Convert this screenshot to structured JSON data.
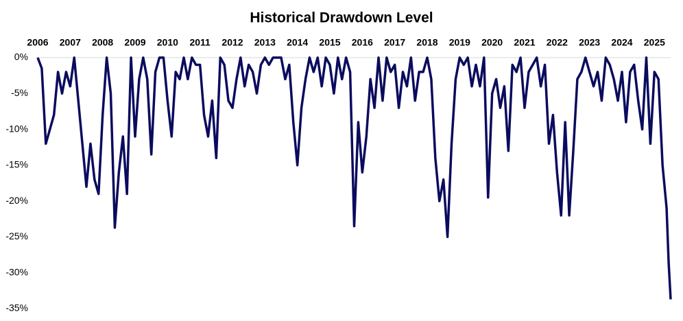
{
  "chart_data": {
    "type": "line",
    "title": "Historical Drawdown Level",
    "x": [
      2006,
      2006.125,
      2006.25,
      2006.375,
      2006.5,
      2006.625,
      2006.75,
      2006.875,
      2007,
      2007.125,
      2007.25,
      2007.375,
      2007.5,
      2007.625,
      2007.75,
      2007.875,
      2008,
      2008.125,
      2008.25,
      2008.375,
      2008.5,
      2008.625,
      2008.75,
      2008.875,
      2009,
      2009.125,
      2009.25,
      2009.375,
      2009.5,
      2009.625,
      2009.75,
      2009.875,
      2010,
      2010.125,
      2010.25,
      2010.375,
      2010.5,
      2010.625,
      2010.75,
      2010.875,
      2011,
      2011.125,
      2011.25,
      2011.375,
      2011.5,
      2011.625,
      2011.75,
      2011.875,
      2012,
      2012.125,
      2012.25,
      2012.375,
      2012.5,
      2012.625,
      2012.75,
      2012.875,
      2013,
      2013.125,
      2013.25,
      2013.375,
      2013.5,
      2013.625,
      2013.75,
      2013.875,
      2014,
      2014.125,
      2014.25,
      2014.375,
      2014.5,
      2014.625,
      2014.75,
      2014.875,
      2015,
      2015.125,
      2015.25,
      2015.375,
      2015.5,
      2015.625,
      2015.75,
      2015.875,
      2016,
      2016.125,
      2016.25,
      2016.375,
      2016.5,
      2016.625,
      2016.75,
      2016.875,
      2017,
      2017.125,
      2017.25,
      2017.375,
      2017.5,
      2017.625,
      2017.75,
      2017.875,
      2018,
      2018.125,
      2018.25,
      2018.375,
      2018.5,
      2018.625,
      2018.75,
      2018.875,
      2019,
      2019.125,
      2019.25,
      2019.375,
      2019.5,
      2019.625,
      2019.75,
      2019.875,
      2020,
      2020.125,
      2020.25,
      2020.375,
      2020.5,
      2020.625,
      2020.75,
      2020.875,
      2021,
      2021.125,
      2021.25,
      2021.375,
      2021.5,
      2021.625,
      2021.75,
      2021.875,
      2022,
      2022.125,
      2022.25,
      2022.375,
      2022.5,
      2022.625,
      2022.75,
      2022.875,
      2023,
      2023.125,
      2023.25,
      2023.375,
      2023.5,
      2023.625,
      2023.75,
      2023.875,
      2024,
      2024.125,
      2024.25,
      2024.375,
      2024.5,
      2024.625,
      2024.75,
      2024.875,
      2025,
      2025.125,
      2025.25,
      2025.375,
      2025.4375,
      2025.5
    ],
    "series": [
      {
        "color": "#0b0b5e",
        "values": [
          0,
          -1.5,
          -12,
          -10,
          -8,
          -2,
          -5,
          -2,
          -4,
          0,
          -6,
          -12,
          -18,
          -12,
          -17,
          -19,
          -8,
          0,
          -5,
          -23.7,
          -16,
          -11,
          -19,
          0,
          -11,
          -3,
          0,
          -3,
          -13.5,
          -2,
          0,
          0,
          -6,
          -11,
          -2,
          -3,
          0,
          -3,
          0,
          -1,
          -1,
          -8,
          -11,
          -6,
          -14,
          0,
          -1,
          -6,
          -7,
          -3,
          0,
          -4,
          -1,
          -2,
          -5,
          -1,
          0,
          -1,
          0,
          0,
          0,
          -3,
          -1,
          -9,
          -15,
          -7,
          -3,
          0,
          -2,
          0,
          -4,
          0,
          -1,
          -5,
          0,
          -3,
          0,
          -2,
          -23.5,
          -9,
          -16,
          -11,
          -3,
          -7,
          0,
          -6,
          0,
          -2,
          -1,
          -7,
          -2,
          -4,
          0,
          -6,
          -2,
          -2,
          0,
          -3,
          -14,
          -20,
          -17,
          -25,
          -12,
          -3,
          0,
          -1,
          0,
          -4,
          -1,
          -4,
          0,
          -19.5,
          -5,
          -3,
          -7,
          -4,
          -13,
          -1,
          -2,
          0,
          -7,
          -2,
          -1,
          0,
          -4,
          -1,
          -12,
          -8,
          -16,
          -22,
          -9,
          -22,
          -13,
          -3,
          -2,
          0,
          -2,
          -4,
          -2,
          -6,
          0,
          -1,
          -3,
          -6,
          -2,
          -9,
          -2,
          -1,
          -6,
          -10,
          0,
          -12,
          -2,
          -3,
          -15,
          -21,
          -28.5,
          -33.7
        ]
      }
    ],
    "xlim": [
      2006,
      2025.5
    ],
    "xticks": [
      2006,
      2007,
      2008,
      2009,
      2010,
      2011,
      2012,
      2013,
      2014,
      2015,
      2016,
      2017,
      2018,
      2019,
      2020,
      2021,
      2022,
      2023,
      2024,
      2025
    ],
    "ylim": [
      -35,
      0
    ],
    "yticks": [
      {
        "value": 0,
        "label": "0%"
      },
      {
        "value": -5,
        "label": "-5%"
      },
      {
        "value": -10,
        "label": "-10%"
      },
      {
        "value": -15,
        "label": "-15%"
      },
      {
        "value": -20,
        "label": "-20%"
      },
      {
        "value": -25,
        "label": "-25%"
      },
      {
        "value": -30,
        "label": "-30%"
      },
      {
        "value": -35,
        "label": "-35%"
      }
    ]
  }
}
